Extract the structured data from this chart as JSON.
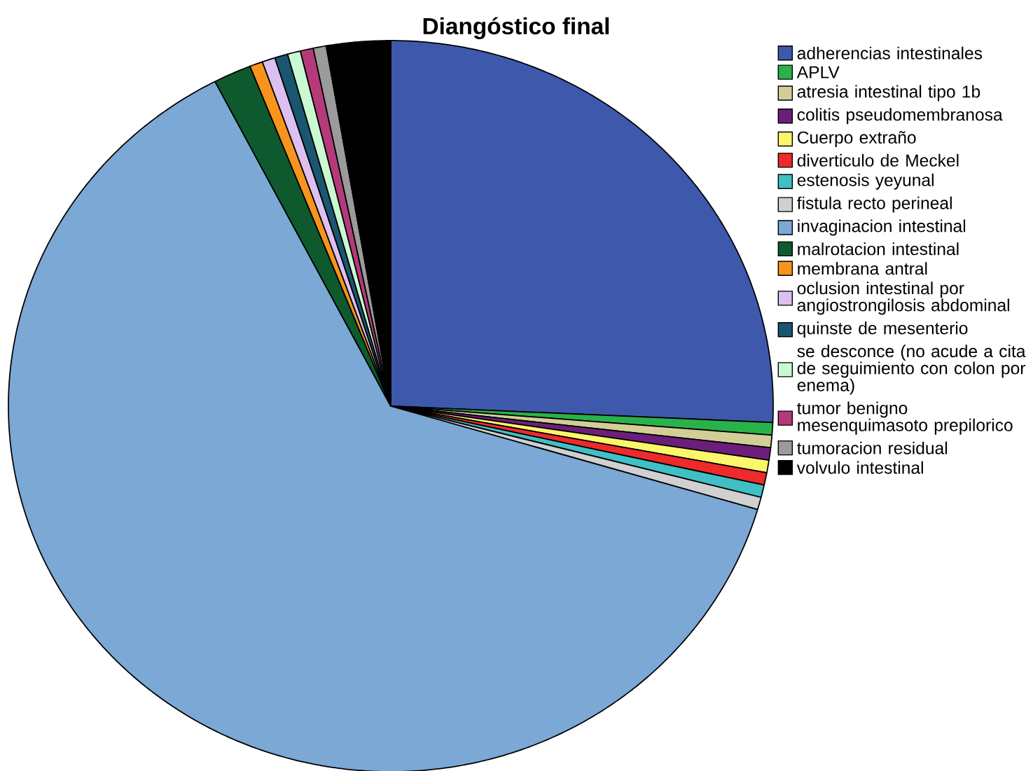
{
  "chart_data": {
    "type": "pie",
    "title": "Diangóstico final",
    "legend": "right",
    "categories": [
      "adherencias intestinales",
      "APLV",
      "atresia intestinal tipo 1b",
      "colitis pseudomembranosa",
      "Cuerpo extraño",
      "diverticulo de Meckel",
      "estenosis yeyunal",
      "fistula recto perineal",
      "invaginacion intestinal",
      "malrotacion intestinal",
      "membrana antral",
      "oclusion intestinal por angiostrongilosis abdominal",
      "quinste de mesenterio",
      "se desconce (no acude a cita de seguimiento con colon por enema)",
      "tumor benigno mesenquimasoto prepilorico",
      "tumoracion residual",
      "volvulo intestinal"
    ],
    "values": [
      25.7,
      0.55,
      0.55,
      0.55,
      0.55,
      0.55,
      0.55,
      0.55,
      62.8,
      1.6,
      0.55,
      0.55,
      0.55,
      0.55,
      0.55,
      0.55,
      2.7
    ],
    "colors": [
      "#3e58ac",
      "#2ab24a",
      "#d3ce97",
      "#6b1f7a",
      "#fbf66a",
      "#ee2a2b",
      "#3ec0c4",
      "#d0d0d0",
      "#7ba8d5",
      "#0e5a2e",
      "#f7941d",
      "#dcc0f0",
      "#1a5670",
      "#c9f9d0",
      "#b53a7a",
      "#9b9b9b",
      "#000000"
    ]
  }
}
